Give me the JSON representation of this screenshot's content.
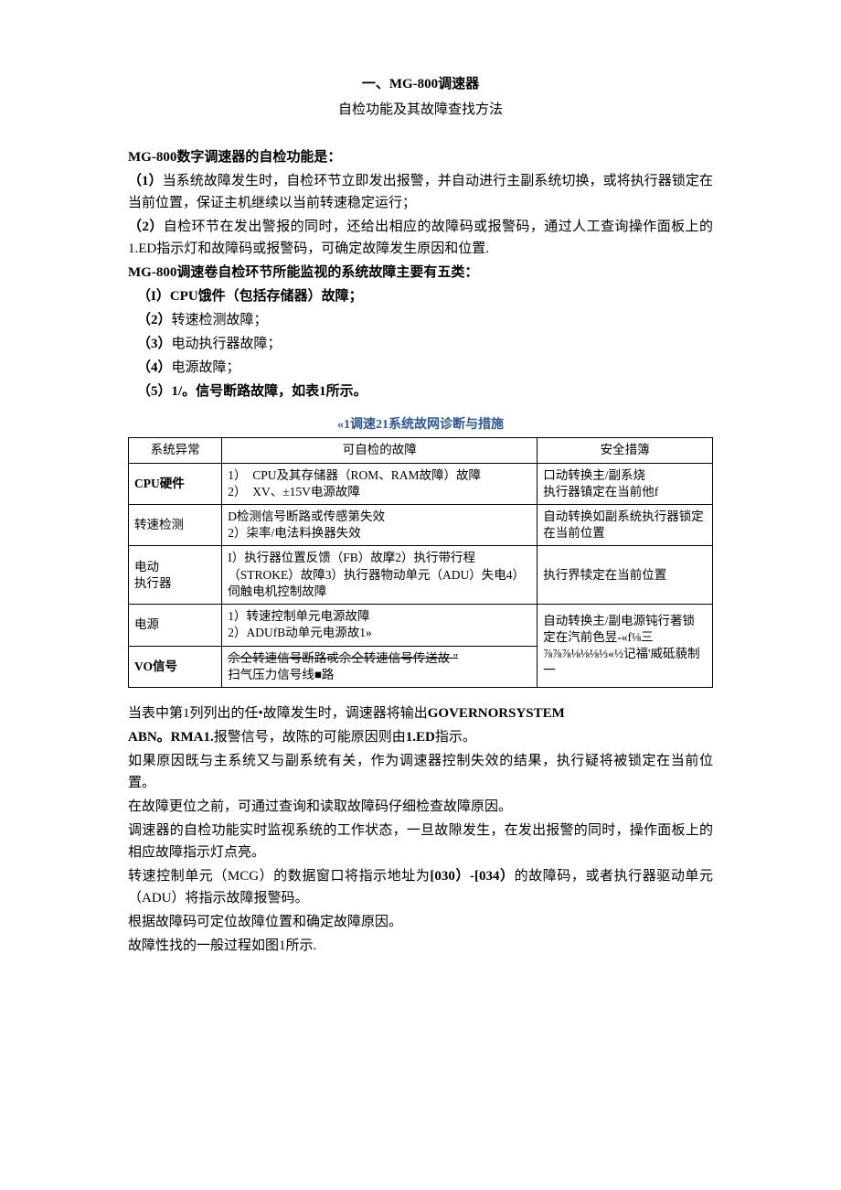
{
  "title": {
    "line1": "一、MG-800调速器",
    "line2": "自检功能及其故障查找方法"
  },
  "intro": {
    "heading": "MG-800数字调速器的自检功能是：",
    "item1_num": "（1）",
    "item1_text": "当系统故障发生时，自检环节立即发出报警，并自动进行主副系统切换，或将执行器锁定在当前位置，保证主机继续以当前转速稳定运行；",
    "item2_num": "（2）",
    "item2_text": "自检环节在发出警报的同时，还给出相应的故障码或报警码，通过人工查询操作面板上的1.ED指示灯和故障码或报警码，可确定故障发生原因和位置."
  },
  "categories": {
    "heading": "MG-800调速卷自检环节所能监视的系统故障主要有五类：",
    "c1_num": "（I）",
    "c1_text": "CPU饿件（包括存储器）故障；",
    "c2_num": "（2）",
    "c2_text": "转速检测故障；",
    "c3_num": "（3）",
    "c3_text": "电动执行器故障；",
    "c4_num": "（4）",
    "c4_text": "电源故障；",
    "c5_num": "（5）",
    "c5_text": "1/。信号断路故障，如表1所示。"
  },
  "table": {
    "caption": "«1调速21系统故网诊断与措施",
    "header": {
      "col1": "系统异常",
      "col2": "可自检的故障",
      "col3": "安全措簿"
    },
    "rows": [
      {
        "c1": "CPU硬件",
        "c2": "1）　CPU及其存储器（ROM、RAM故障）故障\n2）　XV、±15V电源故障",
        "c3": "口动转换主/副系烧\n执行器镇定在当前他f"
      },
      {
        "c1": "转速检测",
        "c2": "D检测信号断路或传感第失效\n2）柒率/电法料换器失效",
        "c3": "自动转换如副系统执行器锁定在当前位置"
      },
      {
        "c1": "电动\n执行器",
        "c2": "I）执行器位置反馈（FB）故摩2）执行带行程（STROKE）故障3）执行器物动单元（ADU）失电4）伺触电机控制故障",
        "c3": "执行界犊定在当前位置"
      },
      {
        "c1": "电源",
        "c2": "1）转速控制单元电源故障\n2）ADUfB动单元电源故1»",
        "c3": "自动转换主/副电源钝行著锁定在汽前色昱-«f⅛三"
      },
      {
        "c1": "VO信号",
        "c2_strike": "佘仝转速信号断路戓佘仝转速信号传送故  \"",
        "c2_plain": "扫气压力信号线■路",
        "c3": "⅞⅞⅞⅛⅛⅛⅓«½记福'威砥藐制一"
      }
    ]
  },
  "body": {
    "p1a": "当表中第1列列出的任•故障发生时，调速器将输出",
    "p1b": "GOVERNORSYSTEM",
    "p2a": "ABN。RMA1.",
    "p2b": "报警信号，故陈的可能原因则由",
    "p2c": "1.ED",
    "p2d": "指示。",
    "p3": "如果原因既与主系统又与副系统有关，作为调速器控制失效的结果，执行疑将被锁定在当前位置。",
    "p4": "在故障更位之前，可通过查询和读取故障码仔细检查故障原因。",
    "p5": "调速器的自检功能实时监视系统的工作状态，一旦故隙发生，在发出报警的同时，操作面板上的相应故障指示灯点亮。",
    "p6a": "转速控制单元（MCG）的数据窗口将指示地址为",
    "p6b": "[030）-[034）",
    "p6c": "的故障码，或者执行器驱动单元（ADU）将指示故障报警码。",
    "p7": "根据故障码可定位故障位置和确定故障原因。",
    "p8": "故障性找的一般过程如图1所示."
  }
}
